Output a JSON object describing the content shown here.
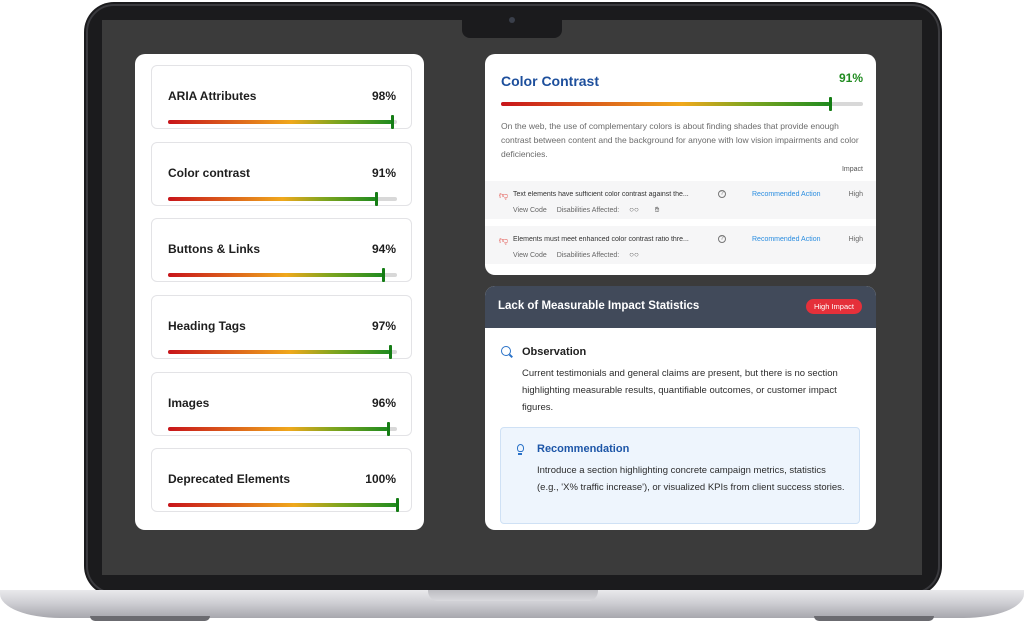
{
  "scores": [
    {
      "label": "ARIA Attributes",
      "value": "98%",
      "percent": 98
    },
    {
      "label": "Color contrast",
      "value": "91%",
      "percent": 91
    },
    {
      "label": "Buttons & Links",
      "value": "94%",
      "percent": 94
    },
    {
      "label": "Heading Tags",
      "value": "97%",
      "percent": 97
    },
    {
      "label": "Images",
      "value": "96%",
      "percent": 96
    },
    {
      "label": "Deprecated Elements",
      "value": "100%",
      "percent": 100
    }
  ],
  "color_contrast": {
    "title": "Color Contrast",
    "score": "91%",
    "percent": 91,
    "description": "On the web, the use of complementary colors is about finding shades that provide enough contrast between content and the background for anyone with low vision impairments and color deficiencies.",
    "impact_header": "Impact",
    "issues": [
      {
        "text": "Text elements have sufficient color contrast against the...",
        "action": "Recommended Action",
        "impact": "High",
        "view_code": "View Code",
        "disabilities": "Disabilities Affected:"
      },
      {
        "text": "Elements must meet enhanced color contrast ratio thre...",
        "action": "Recommended Action",
        "impact": "High",
        "view_code": "View Code",
        "disabilities": "Disabilities Affected:"
      }
    ]
  },
  "insight": {
    "title": "Lack of Measurable Impact Statistics",
    "badge": "High Impact",
    "observation_title": "Observation",
    "observation_text": "Current testimonials and general claims are present, but there is no section highlighting measurable results, quantifiable outcomes, or customer impact figures.",
    "recommendation_title": "Recommendation",
    "recommendation_text": "Introduce a section highlighting concrete campaign metrics, statistics (e.g., 'X% traffic increase'), or visualized KPIs from client success stories."
  },
  "colors": {
    "accent_blue": "#1d4f9c",
    "success_green": "#1f8b1f",
    "danger_red": "#e5303a"
  }
}
